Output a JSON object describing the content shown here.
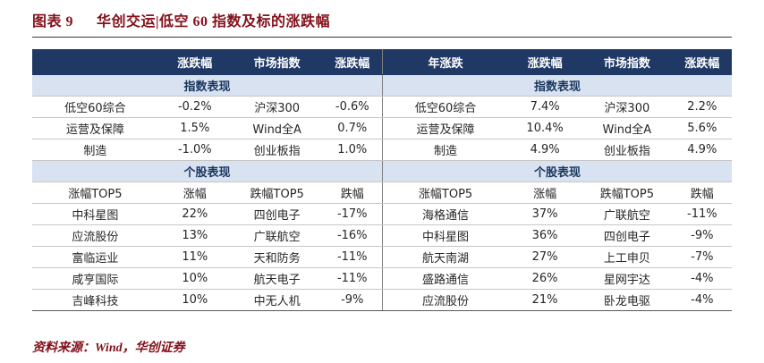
{
  "title": {
    "tag": "图表 9",
    "text": "华创交运|低空 60 指数及标的涨跌幅"
  },
  "footer": {
    "source": "资料来源：Wind，华创证券"
  },
  "colors": {
    "header_bg": "#1F3864",
    "section_bg": "#D9E2F1",
    "accent_red": "#83101A",
    "row_border": "#C6C6C6"
  },
  "table": {
    "left": {
      "header": [
        "",
        "涨跌幅",
        "市场指数",
        "涨跌幅"
      ],
      "index_section": "指数表现",
      "index_rows": [
        [
          "低空60综合",
          "-0.2%",
          "沪深300",
          "-0.6%"
        ],
        [
          "运营及保障",
          "1.5%",
          "Wind全A",
          "0.7%"
        ],
        [
          "制造",
          "-1.0%",
          "创业板指",
          "1.0%"
        ]
      ],
      "stock_section": "个股表现",
      "stock_header": [
        "涨幅TOP5",
        "涨幅",
        "跌幅TOP5",
        "跌幅"
      ],
      "stock_rows": [
        [
          "中科星图",
          "22%",
          "四创电子",
          "-17%"
        ],
        [
          "应流股份",
          "13%",
          "广联航空",
          "-16%"
        ],
        [
          "富临运业",
          "11%",
          "天和防务",
          "-11%"
        ],
        [
          "咸亨国际",
          "10%",
          "航天电子",
          "-11%"
        ],
        [
          "吉峰科技",
          "10%",
          "中无人机",
          "-9%"
        ]
      ]
    },
    "right": {
      "header": [
        "年涨跌",
        "涨跌幅",
        "市场指数",
        "涨跌幅"
      ],
      "index_section": "指数表现",
      "index_rows": [
        [
          "低空60综合",
          "7.4%",
          "沪深300",
          "2.2%"
        ],
        [
          "运营及保障",
          "10.4%",
          "Wind全A",
          "5.6%"
        ],
        [
          "制造",
          "4.9%",
          "创业板指",
          "4.9%"
        ]
      ],
      "stock_section": "个股表现",
      "stock_header": [
        "涨幅TOP5",
        "涨幅",
        "跌幅TOP5",
        "跌幅"
      ],
      "stock_rows": [
        [
          "海格通信",
          "37%",
          "广联航空",
          "-11%"
        ],
        [
          "中科星图",
          "36%",
          "四创电子",
          "-9%"
        ],
        [
          "航天南湖",
          "27%",
          "上工申贝",
          "-7%"
        ],
        [
          "盛路通信",
          "26%",
          "星网宇达",
          "-4%"
        ],
        [
          "应流股份",
          "21%",
          "卧龙电驱",
          "-4%"
        ]
      ]
    }
  }
}
